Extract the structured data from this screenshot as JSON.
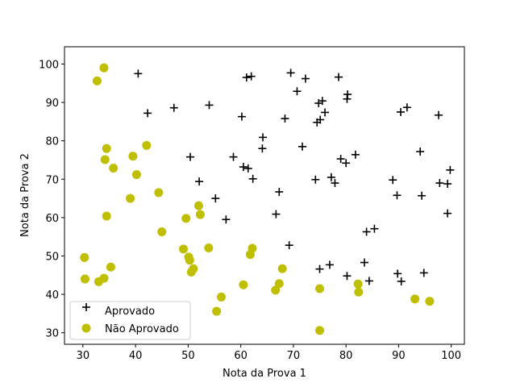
{
  "chart_data": {
    "type": "scatter",
    "title": "",
    "xlabel": "Nota da Prova 1",
    "ylabel": "Nota da Prova 2",
    "xlim": [
      26.5,
      102.5
    ],
    "ylim": [
      27,
      104.5
    ],
    "xticks": [
      30,
      40,
      50,
      60,
      70,
      80,
      90,
      100
    ],
    "yticks": [
      30,
      40,
      50,
      60,
      70,
      80,
      90,
      100
    ],
    "grid": false,
    "legend_position": "lower-left",
    "series": [
      {
        "name": "Aprovado",
        "marker": "plus",
        "color": "#000000",
        "points": [
          [
            40.5,
            97.5
          ],
          [
            42.3,
            87.2
          ],
          [
            47.3,
            88.6
          ],
          [
            50.4,
            75.8
          ],
          [
            52.1,
            69.4
          ],
          [
            54.0,
            89.3
          ],
          [
            55.2,
            65.0
          ],
          [
            57.2,
            59.5
          ],
          [
            58.6,
            75.8
          ],
          [
            60.2,
            86.3
          ],
          [
            60.5,
            73.2
          ],
          [
            61.1,
            96.5
          ],
          [
            61.4,
            72.8
          ],
          [
            62.0,
            96.8
          ],
          [
            62.3,
            70.1
          ],
          [
            64.2,
            80.9
          ],
          [
            64.1,
            78.0
          ],
          [
            66.7,
            60.9
          ],
          [
            67.3,
            66.7
          ],
          [
            68.4,
            85.8
          ],
          [
            69.2,
            52.8
          ],
          [
            69.5,
            97.7
          ],
          [
            70.7,
            92.9
          ],
          [
            71.7,
            78.5
          ],
          [
            72.3,
            96.2
          ],
          [
            74.2,
            69.9
          ],
          [
            74.5,
            84.8
          ],
          [
            74.8,
            89.8
          ],
          [
            75.0,
            46.6
          ],
          [
            75.1,
            85.5
          ],
          [
            75.5,
            90.4
          ],
          [
            76.0,
            87.4
          ],
          [
            76.9,
            47.7
          ],
          [
            77.2,
            70.5
          ],
          [
            77.9,
            69.0
          ],
          [
            78.6,
            96.6
          ],
          [
            79.0,
            75.3
          ],
          [
            80.0,
            74.2
          ],
          [
            80.3,
            92.1
          ],
          [
            80.2,
            90.9
          ],
          [
            80.2,
            44.8
          ],
          [
            81.8,
            76.4
          ],
          [
            83.5,
            48.3
          ],
          [
            83.9,
            56.3
          ],
          [
            84.4,
            43.5
          ],
          [
            85.4,
            57.1
          ],
          [
            88.9,
            69.8
          ],
          [
            89.7,
            65.8
          ],
          [
            89.8,
            45.4
          ],
          [
            90.4,
            87.5
          ],
          [
            90.5,
            43.4
          ],
          [
            91.6,
            88.7
          ],
          [
            94.1,
            77.2
          ],
          [
            94.4,
            65.7
          ],
          [
            94.8,
            45.6
          ],
          [
            97.6,
            86.7
          ],
          [
            97.8,
            69.0
          ],
          [
            99.3,
            68.8
          ],
          [
            99.3,
            61.1
          ],
          [
            99.8,
            72.4
          ]
        ]
      },
      {
        "name": "Não Aprovado",
        "marker": "circle",
        "color": "#bfbf00",
        "points": [
          [
            32.7,
            95.6
          ],
          [
            34.0,
            99.0
          ],
          [
            34.2,
            75.1
          ],
          [
            34.5,
            78.0
          ],
          [
            34.5,
            60.4
          ],
          [
            35.8,
            72.9
          ],
          [
            39.0,
            65.0
          ],
          [
            39.5,
            76.0
          ],
          [
            40.2,
            71.2
          ],
          [
            42.1,
            78.8
          ],
          [
            44.4,
            66.5
          ],
          [
            45.0,
            56.3
          ],
          [
            30.3,
            49.6
          ],
          [
            30.4,
            44.0
          ],
          [
            33.0,
            43.3
          ],
          [
            34.0,
            44.2
          ],
          [
            35.3,
            47.1
          ],
          [
            49.1,
            51.8
          ],
          [
            49.6,
            59.8
          ],
          [
            50.1,
            49.7
          ],
          [
            50.3,
            48.9
          ],
          [
            50.6,
            45.8
          ],
          [
            51.0,
            46.7
          ],
          [
            52.0,
            63.1
          ],
          [
            52.3,
            60.8
          ],
          [
            53.9,
            52.1
          ],
          [
            55.4,
            35.6
          ],
          [
            56.3,
            39.3
          ],
          [
            60.5,
            42.5
          ],
          [
            61.8,
            50.4
          ],
          [
            62.2,
            52.0
          ],
          [
            66.6,
            41.1
          ],
          [
            67.3,
            42.8
          ],
          [
            67.9,
            46.7
          ],
          [
            75.0,
            41.5
          ],
          [
            75.0,
            30.6
          ],
          [
            82.3,
            42.7
          ],
          [
            82.4,
            40.6
          ],
          [
            93.1,
            38.8
          ],
          [
            95.9,
            38.2
          ]
        ]
      }
    ]
  }
}
